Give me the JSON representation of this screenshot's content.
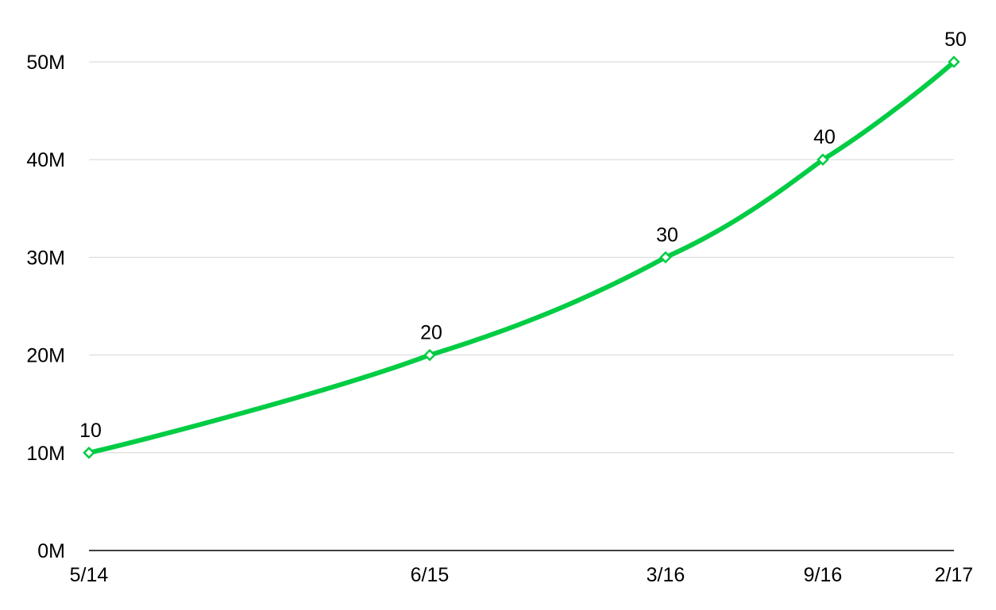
{
  "chart_data": {
    "type": "line",
    "title": "",
    "xlabel": "",
    "ylabel": "",
    "x": [
      "2014-05",
      "2015-06",
      "2016-03",
      "2016-09",
      "2017-02"
    ],
    "x_tick_labels": [
      "5/14",
      "6/15",
      "3/16",
      "9/16",
      "2/17"
    ],
    "series": [
      {
        "values": [
          10,
          20,
          30,
          40,
          50
        ],
        "data_labels": [
          "10",
          "20",
          "30",
          "40",
          "50"
        ],
        "color": "#00cc44",
        "marker": "diamond-hollow",
        "smooth": true
      }
    ],
    "y_ticks": [
      0,
      10,
      20,
      30,
      40,
      50
    ],
    "y_tick_labels": [
      "0M",
      "10M",
      "20M",
      "30M",
      "40M",
      "50M"
    ],
    "ylim": [
      0,
      50
    ],
    "y_unit": "M",
    "grid": "horizontal",
    "grid_color": "#d6d6d6",
    "legend": "none"
  }
}
